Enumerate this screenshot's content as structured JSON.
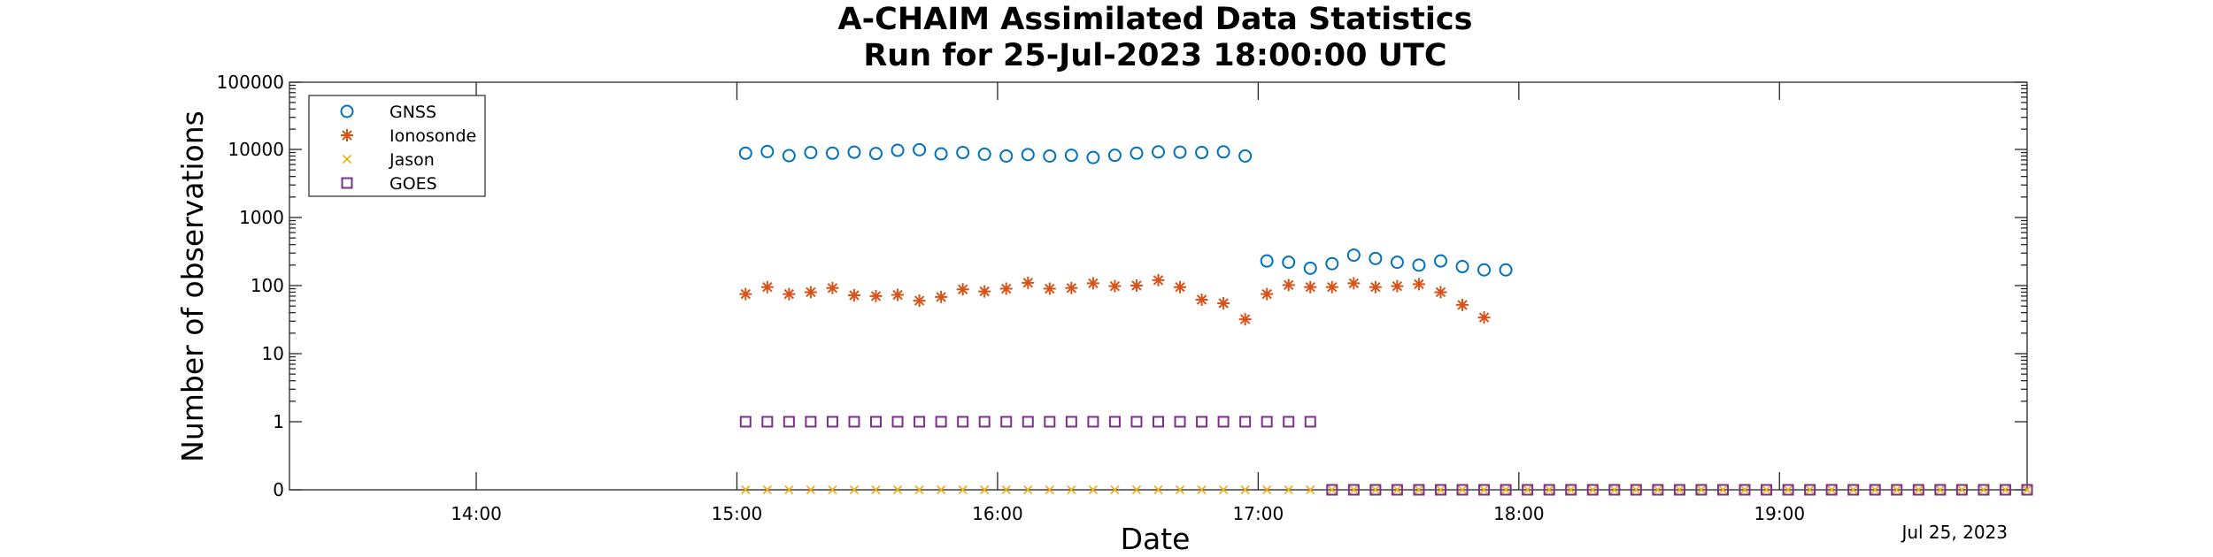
{
  "chart_data": {
    "type": "scatter",
    "title": [
      "A-CHAIM Assimilated Data Statistics",
      "Run for 25-Jul-2023 18:00:00 UTC"
    ],
    "xlabel": "Date",
    "ylabel": "Number of observations",
    "date_label": "Jul 25, 2023",
    "x_unit": "hour of 25-Jul-2023 (UTC)",
    "xlim": [
      "13:17",
      "19:57"
    ],
    "x_ticks": [
      {
        "t": "14:00",
        "label": "14:00"
      },
      {
        "t": "15:00",
        "label": "15:00"
      },
      {
        "t": "16:00",
        "label": "16:00"
      },
      {
        "t": "17:00",
        "label": "17:00"
      },
      {
        "t": "18:00",
        "label": "18:00"
      },
      {
        "t": "19:00",
        "label": "19:00"
      }
    ],
    "y_scale": "log",
    "ylim": [
      0,
      100000
    ],
    "y_ticks": [
      {
        "v": 0,
        "label": "0"
      },
      {
        "v": 1,
        "label": "1"
      },
      {
        "v": 10,
        "label": "10"
      },
      {
        "v": 100,
        "label": "100"
      },
      {
        "v": 1000,
        "label": "1000"
      },
      {
        "v": 10000,
        "label": "10000"
      },
      {
        "v": 100000,
        "label": "100000"
      }
    ],
    "grid": false,
    "legend_position": "top-left",
    "series": [
      {
        "name": "GNSS",
        "marker": "circle",
        "color": "#0072BD",
        "points": [
          [
            "15:02",
            8800
          ],
          [
            "15:07",
            9300
          ],
          [
            "15:12",
            8100
          ],
          [
            "15:17",
            9000
          ],
          [
            "15:22",
            8800
          ],
          [
            "15:27",
            9100
          ],
          [
            "15:32",
            8700
          ],
          [
            "15:37",
            9700
          ],
          [
            "15:42",
            9900
          ],
          [
            "15:47",
            8600
          ],
          [
            "15:52",
            9000
          ],
          [
            "15:57",
            8500
          ],
          [
            "16:02",
            8000
          ],
          [
            "16:07",
            8400
          ],
          [
            "16:12",
            8000
          ],
          [
            "16:17",
            8200
          ],
          [
            "16:22",
            7600
          ],
          [
            "16:27",
            8200
          ],
          [
            "16:32",
            8800
          ],
          [
            "16:37",
            9200
          ],
          [
            "16:42",
            9100
          ],
          [
            "16:47",
            9000
          ],
          [
            "16:52",
            9200
          ],
          [
            "16:57",
            8000
          ],
          [
            "17:02",
            230
          ],
          [
            "17:07",
            220
          ],
          [
            "17:12",
            180
          ],
          [
            "17:17",
            210
          ],
          [
            "17:22",
            280
          ],
          [
            "17:27",
            250
          ],
          [
            "17:32",
            220
          ],
          [
            "17:37",
            200
          ],
          [
            "17:42",
            230
          ],
          [
            "17:47",
            190
          ],
          [
            "17:52",
            170
          ],
          [
            "17:57",
            170
          ]
        ]
      },
      {
        "name": "Ionosonde",
        "marker": "asterisk",
        "color": "#D95319",
        "points": [
          [
            "15:02",
            75
          ],
          [
            "15:07",
            95
          ],
          [
            "15:12",
            75
          ],
          [
            "15:17",
            80
          ],
          [
            "15:22",
            92
          ],
          [
            "15:27",
            72
          ],
          [
            "15:32",
            70
          ],
          [
            "15:37",
            73
          ],
          [
            "15:42",
            60
          ],
          [
            "15:47",
            68
          ],
          [
            "15:52",
            88
          ],
          [
            "15:57",
            82
          ],
          [
            "16:02",
            90
          ],
          [
            "16:07",
            110
          ],
          [
            "16:12",
            90
          ],
          [
            "16:17",
            92
          ],
          [
            "16:22",
            108
          ],
          [
            "16:27",
            98
          ],
          [
            "16:32",
            100
          ],
          [
            "16:37",
            120
          ],
          [
            "16:42",
            95
          ],
          [
            "16:47",
            62
          ],
          [
            "16:52",
            55
          ],
          [
            "16:57",
            32
          ],
          [
            "17:02",
            75
          ],
          [
            "17:07",
            102
          ],
          [
            "17:12",
            95
          ],
          [
            "17:17",
            95
          ],
          [
            "17:22",
            108
          ],
          [
            "17:27",
            95
          ],
          [
            "17:32",
            98
          ],
          [
            "17:37",
            105
          ],
          [
            "17:42",
            80
          ],
          [
            "17:47",
            52
          ],
          [
            "17:52",
            34
          ]
        ]
      },
      {
        "name": "Jason",
        "marker": "x",
        "color": "#EDB120",
        "points": [
          [
            "15:02",
            0
          ],
          [
            "15:07",
            0
          ],
          [
            "15:12",
            0
          ],
          [
            "15:17",
            0
          ],
          [
            "15:22",
            0
          ],
          [
            "15:27",
            0
          ],
          [
            "15:32",
            0
          ],
          [
            "15:37",
            0
          ],
          [
            "15:42",
            0
          ],
          [
            "15:47",
            0
          ],
          [
            "15:52",
            0
          ],
          [
            "15:57",
            0
          ],
          [
            "16:02",
            0
          ],
          [
            "16:07",
            0
          ],
          [
            "16:12",
            0
          ],
          [
            "16:17",
            0
          ],
          [
            "16:22",
            0
          ],
          [
            "16:27",
            0
          ],
          [
            "16:32",
            0
          ],
          [
            "16:37",
            0
          ],
          [
            "16:42",
            0
          ],
          [
            "16:47",
            0
          ],
          [
            "16:52",
            0
          ],
          [
            "16:57",
            0
          ],
          [
            "17:02",
            0
          ],
          [
            "17:07",
            0
          ],
          [
            "17:12",
            0
          ],
          [
            "17:17",
            0
          ],
          [
            "17:22",
            0
          ],
          [
            "17:27",
            0
          ],
          [
            "17:32",
            0
          ],
          [
            "17:37",
            0
          ],
          [
            "17:42",
            0
          ],
          [
            "17:47",
            0
          ],
          [
            "17:52",
            0
          ],
          [
            "17:57",
            0
          ],
          [
            "18:02",
            0
          ],
          [
            "18:07",
            0
          ],
          [
            "18:12",
            0
          ],
          [
            "18:17",
            0
          ],
          [
            "18:22",
            0
          ],
          [
            "18:27",
            0
          ],
          [
            "18:32",
            0
          ],
          [
            "18:37",
            0
          ],
          [
            "18:42",
            0
          ],
          [
            "18:47",
            0
          ],
          [
            "18:52",
            0
          ],
          [
            "18:57",
            0
          ],
          [
            "19:02",
            0
          ],
          [
            "19:07",
            0
          ],
          [
            "19:12",
            0
          ],
          [
            "19:17",
            0
          ],
          [
            "19:22",
            0
          ],
          [
            "19:27",
            0
          ],
          [
            "19:32",
            0
          ],
          [
            "19:37",
            0
          ],
          [
            "19:42",
            0
          ],
          [
            "19:47",
            0
          ],
          [
            "19:52",
            0
          ],
          [
            "19:57",
            0
          ]
        ]
      },
      {
        "name": "GOES",
        "marker": "square",
        "color": "#7E2F8E",
        "points": [
          [
            "15:02",
            1
          ],
          [
            "15:07",
            1
          ],
          [
            "15:12",
            1
          ],
          [
            "15:17",
            1
          ],
          [
            "15:22",
            1
          ],
          [
            "15:27",
            1
          ],
          [
            "15:32",
            1
          ],
          [
            "15:37",
            1
          ],
          [
            "15:42",
            1
          ],
          [
            "15:47",
            1
          ],
          [
            "15:52",
            1
          ],
          [
            "15:57",
            1
          ],
          [
            "16:02",
            1
          ],
          [
            "16:07",
            1
          ],
          [
            "16:12",
            1
          ],
          [
            "16:17",
            1
          ],
          [
            "16:22",
            1
          ],
          [
            "16:27",
            1
          ],
          [
            "16:32",
            1
          ],
          [
            "16:37",
            1
          ],
          [
            "16:42",
            1
          ],
          [
            "16:47",
            1
          ],
          [
            "16:52",
            1
          ],
          [
            "16:57",
            1
          ],
          [
            "17:02",
            1
          ],
          [
            "17:07",
            1
          ],
          [
            "17:12",
            1
          ],
          [
            "17:17",
            0
          ],
          [
            "17:22",
            0
          ],
          [
            "17:27",
            0
          ],
          [
            "17:32",
            0
          ],
          [
            "17:37",
            0
          ],
          [
            "17:42",
            0
          ],
          [
            "17:47",
            0
          ],
          [
            "17:52",
            0
          ],
          [
            "17:57",
            0
          ],
          [
            "18:02",
            0
          ],
          [
            "18:07",
            0
          ],
          [
            "18:12",
            0
          ],
          [
            "18:17",
            0
          ],
          [
            "18:22",
            0
          ],
          [
            "18:27",
            0
          ],
          [
            "18:32",
            0
          ],
          [
            "18:37",
            0
          ],
          [
            "18:42",
            0
          ],
          [
            "18:47",
            0
          ],
          [
            "18:52",
            0
          ],
          [
            "18:57",
            0
          ],
          [
            "19:02",
            0
          ],
          [
            "19:07",
            0
          ],
          [
            "19:12",
            0
          ],
          [
            "19:17",
            0
          ],
          [
            "19:22",
            0
          ],
          [
            "19:27",
            0
          ],
          [
            "19:32",
            0
          ],
          [
            "19:37",
            0
          ],
          [
            "19:42",
            0
          ],
          [
            "19:47",
            0
          ],
          [
            "19:52",
            0
          ],
          [
            "19:57",
            0
          ]
        ]
      }
    ]
  }
}
